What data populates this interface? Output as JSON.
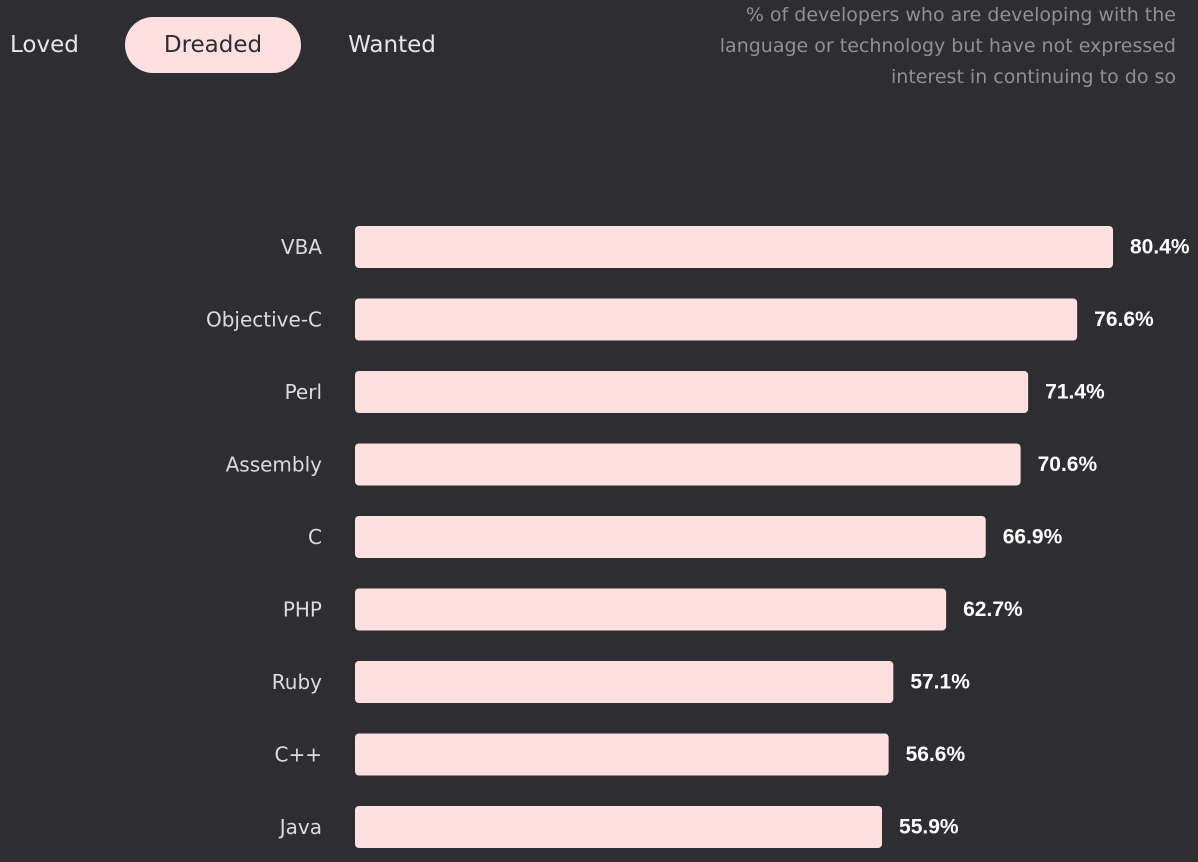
{
  "tabs": [
    {
      "label": "Loved",
      "selected": false
    },
    {
      "label": "Dreaded",
      "selected": true
    },
    {
      "label": "Wanted",
      "selected": false
    }
  ],
  "description": "% of developers who are developing with the language or technology but have not expressed interest in continuing to do so",
  "colors": {
    "background": "#2d2d32",
    "bar": "#ffe0e0",
    "selected_tab": "#ffe0e0",
    "selected_tab_text": "#2d2d32",
    "description_text": "#8f8f95",
    "value_text": "#ffffff"
  },
  "chart_data": {
    "type": "bar",
    "orientation": "horizontal",
    "categories": [
      "VBA",
      "Objective-C",
      "Perl",
      "Assembly",
      "C",
      "PHP",
      "Ruby",
      "C++",
      "Java"
    ],
    "values": [
      80.4,
      76.6,
      71.4,
      70.6,
      66.9,
      62.7,
      57.1,
      56.6,
      55.9
    ],
    "value_labels": [
      "80.4%",
      "76.6%",
      "71.4%",
      "70.6%",
      "66.9%",
      "62.7%",
      "57.1%",
      "56.6%",
      "55.9%"
    ],
    "xlim": [
      0,
      80.4
    ],
    "grid": false,
    "legend": "none"
  }
}
